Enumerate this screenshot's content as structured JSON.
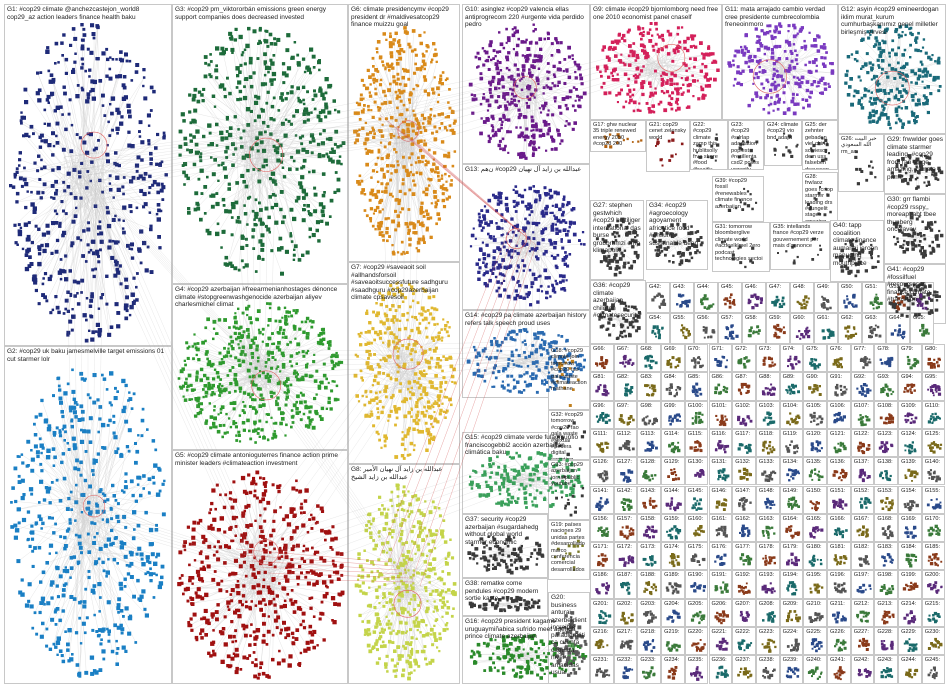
{
  "groups": [
    {
      "id": "G1",
      "label": "G1: #cop29 climate @anchezcastejon_world8 cop29_az action leaders finance health baku",
      "color": "#1e2a78"
    },
    {
      "id": "G2",
      "label": "G2: #cop29 uk baku jamesmelville target emissions 01 cut starmer lolr",
      "color": "#1a7fc4"
    },
    {
      "id": "G3",
      "label": "G3: #cop29 pm_viktororbán emissions green energy support companies does decreased invested",
      "color": "#1d6b3a"
    },
    {
      "id": "G4",
      "label": "G4: #cop29 azerbaijan #freearmenianhostages dénonce climate #stopgreenwashgenocide azerbaijan aliyev charlesmichel climat",
      "color": "#2e9a2e"
    },
    {
      "id": "G5",
      "label": "G5: #cop29 climate antonioguterres finance action prime minister leaders #climateaction investment",
      "color": "#a01010"
    },
    {
      "id": "G6",
      "label": "G6: climate presidencymv #cop29 president dr #maldivesatcop29 finance muizzu goal",
      "color": "#d98a1a"
    },
    {
      "id": "G7",
      "label": "G7: #cop29 #saveaoit soil #allhandsforsoil #saveaoitsuccessfuture sadhguru #saadhguru #cop29azerbaijan climate cpsavesoil",
      "color": "#e0b830"
    },
    {
      "id": "G8",
      "label": "G8: عبدالله بن زايد آل نهيان الأمير عبدالله بن زايد الشيخ",
      "color": "#c4d44a"
    },
    {
      "id": "G9",
      "label": "G9: climate #cop29 bjornlomborg need free one 2010 economist panel cnaself",
      "color": "#d4205a"
    },
    {
      "id": "G10",
      "label": "G10: asinglez #cop29 valencia ellas antiprogrecom 220 #urgente vida perdido pedro",
      "color": "#6a1a8a"
    },
    {
      "id": "G11",
      "label": "G11: mata arrajado cambio verdad cree presidente cumbrecolombia freneoinmoro",
      "color": "#7a3ac0"
    },
    {
      "id": "G12",
      "label": "G12: asyin #cop29 emineerdogan iklim murat_kurum cumhurbaşkanımız genel milletler birleşmiş zirvesi",
      "color": "#1a6a7a"
    },
    {
      "id": "G13",
      "label": "G13: ن‌هم #cop29 عبدالله بن زايد آل نهيان",
      "color": "#2a2a8a"
    },
    {
      "id": "G14",
      "label": "G14: #cop29 pa climate azerbaijan history refers talk speech proud uses",
      "color": "#2a6ab0"
    },
    {
      "id": "G15",
      "label": "G15: #cop29 climate verde fulagmunfio franciscogebbi2 acción azerbaiyán climática baku",
      "color": "#3aa05a"
    },
    {
      "id": "G16",
      "label": "G16: #cop29 president kagame uruguaymiñabica sufrido meet agenda prince climate azerbaijan",
      "color": "#2a8a2a"
    },
    {
      "id": "G17",
      "label": "G17: ghw nuclear 35 triple renewed energy 2050 #cop28 200",
      "color": "#b06010"
    },
    {
      "id": "G18",
      "label": "G18: #cop29 climate join tomorrow #cop29 fao gala waste #climateaction mathane",
      "color": "#c08020"
    },
    {
      "id": "G19",
      "label": "G19: países naciones 29 unidas partes #desarrollado marco conferencia comercial desarrollados",
      "color": "#7a7a2a"
    },
    {
      "id": "G20",
      "label": "G20: business anturai azerbeidient increible paradigmática cuenta caguara nivel amacidas usual",
      "color": "#5a5a5a"
    },
    {
      "id": "G21",
      "label": "G21: cop29 cenet zelensky world",
      "color": "#8a1a1a"
    },
    {
      "id": "G22",
      "label": "G22: #cop29 climate zamp this hublitsolly frve shore #food #heaitly",
      "color": "#3a3a3a"
    },
    {
      "id": "G23",
      "label": "G23: #cop29 #sdrlap adaptation poplest #resillenta csd2 polies urgently himbest",
      "color": "#3a3a3a"
    },
    {
      "id": "G24",
      "label": "G24: climate #cop29 vio bnd adapt",
      "color": "#3a3a3a"
    },
    {
      "id": "G25",
      "label": "G25: der zehnter gebaden viel china sowieso dem uss falseben dsaussen",
      "color": "#3a3a3a"
    },
    {
      "id": "G26",
      "label": "G26: خبر البيت الله السعودي rm_ac",
      "color": "#3a3a3a"
    },
    {
      "id": "G27",
      "label": "G27: stephen gestwhich #cop29 hultiliger international das burse grobbrbmzi emp klimapoliti",
      "color": "#3a3a3a"
    },
    {
      "id": "G28",
      "label": "G28: frwlaoz goes rcrtop starmer leading drs #dungelit stage amazing mrprime",
      "color": "#3a3a3a"
    },
    {
      "id": "G29",
      "label": "G29: frwwlder goes climate starmer leading, #cop29 front ran stage amazing, climate prime",
      "color": "#3a3a3a"
    },
    {
      "id": "G30",
      "label": "G30: grr flambi #cop29 rsspy,, moreapt abt tbee thunberg oncelavey",
      "color": "#3a3a3a"
    },
    {
      "id": "G31",
      "label": "G31: tomorrow bloomberglive climate world #actfeelklmel 2ero podcast technologies sectoi",
      "color": "#3a3a3a"
    },
    {
      "id": "G32",
      "label": "G32: #cop29 tomorrow #cop29 fao gala waste #sexual #hedera digital reporting",
      "color": "#3a3a3a"
    },
    {
      "id": "G33",
      "label": "G33: #cop29 azerbaijan jornalpublic youtube",
      "color": "#3a3a3a"
    },
    {
      "id": "G34",
      "label": "G34: #cop29 #agroecology agoyament africatice food #ensure sustainable deep",
      "color": "#3a3a3a"
    },
    {
      "id": "G35",
      "label": "G35: intellands france #cop29 verze gouvernement per mais d'annonce",
      "color": "#3a3a3a"
    },
    {
      "id": "G36",
      "label": "G36: #cop29 climate azerbaijan children #climatesecurity",
      "color": "#3a3a3a"
    },
    {
      "id": "G37",
      "label": "G37: security #cop29 azerbaijan #sugardahedg without global world starmer economic",
      "color": "#3a3a3a"
    },
    {
      "id": "G38",
      "label": "G38: rematke come pendules #cop29 modern sortie kaste",
      "color": "#3a3a3a"
    },
    {
      "id": "G39",
      "label": "G39: #cop29 fossil #renewables climate finance azerbaijan",
      "color": "#3a3a3a"
    },
    {
      "id": "G40",
      "label": "G40: tapp cooalition climate finance aumanai jeroon manuqinq mouthpiece",
      "color": "#3a3a3a"
    },
    {
      "id": "G41",
      "label": "G41: #cop29 #fossilfuel #recourseses finance climate #transition",
      "color": "#3a3a3a"
    }
  ],
  "small_prefix": "G",
  "small_start": 42,
  "small_end": 262
}
